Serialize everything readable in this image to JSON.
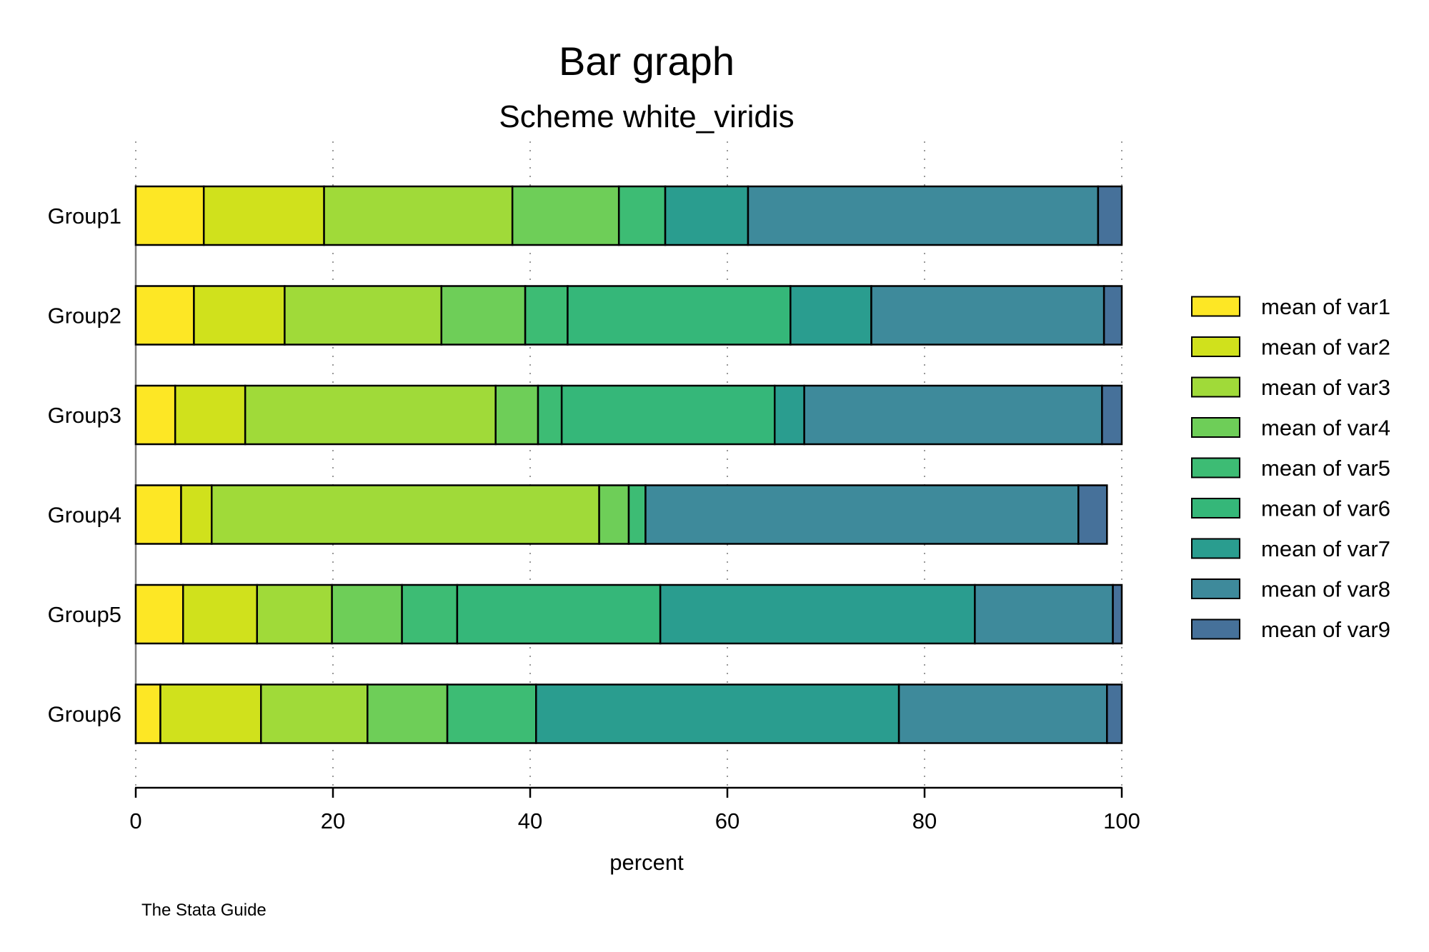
{
  "chart_data": {
    "type": "bar",
    "orientation": "horizontal",
    "stacked": true,
    "title": "Bar graph",
    "subtitle": "Scheme white_viridis",
    "xlabel": "percent",
    "ylabel": "",
    "xlim": [
      0,
      100
    ],
    "xticks": [
      0,
      20,
      40,
      60,
      80,
      100
    ],
    "grid": true,
    "legend_position": "right",
    "note": "The Stata Guide",
    "categories": [
      "Group1",
      "Group2",
      "Group3",
      "Group4",
      "Group5",
      "Group6"
    ],
    "series": [
      {
        "name": "mean of var1",
        "color": "#fde725",
        "values": [
          6.9,
          5.9,
          4.0,
          4.6,
          4.8,
          2.5
        ]
      },
      {
        "name": "mean of var2",
        "color": "#d0e11c",
        "values": [
          12.2,
          9.2,
          7.1,
          3.1,
          7.5,
          10.2
        ]
      },
      {
        "name": "mean of var3",
        "color": "#a0da39",
        "values": [
          19.1,
          15.9,
          25.4,
          39.3,
          7.6,
          10.8
        ]
      },
      {
        "name": "mean of var4",
        "color": "#6ece58",
        "values": [
          10.8,
          8.5,
          4.3,
          3.0,
          7.1,
          8.1
        ]
      },
      {
        "name": "mean of var5",
        "color": "#3dbc74",
        "values": [
          4.7,
          4.3,
          2.4,
          1.7,
          5.6,
          9.0
        ]
      },
      {
        "name": "mean of var6",
        "color": "#35b779",
        "values": [
          0.0,
          22.6,
          21.6,
          0.0,
          20.6,
          0.0
        ]
      },
      {
        "name": "mean of var7",
        "color": "#2a9d8f",
        "values": [
          8.4,
          8.2,
          3.0,
          0.0,
          31.9,
          36.8
        ]
      },
      {
        "name": "mean of var8",
        "color": "#3e8a9b",
        "values": [
          35.5,
          23.6,
          30.2,
          43.9,
          14.0,
          21.1
        ]
      },
      {
        "name": "mean of var9",
        "color": "#46719a",
        "values": [
          2.4,
          1.8,
          2.0,
          2.9,
          0.9,
          1.5
        ]
      }
    ]
  }
}
